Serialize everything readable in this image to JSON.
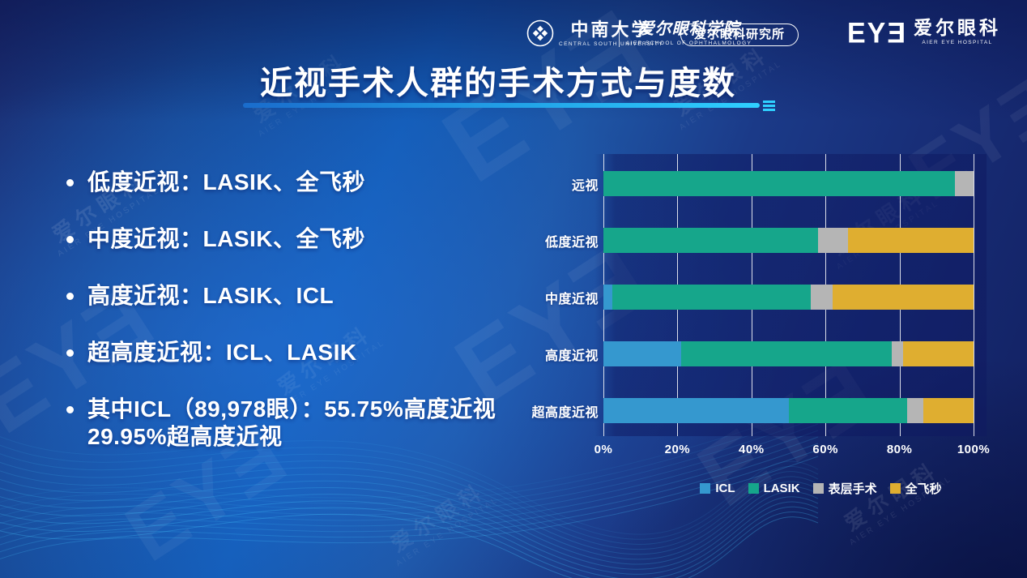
{
  "header": {
    "title": "近视手术人群的手术方式与度数",
    "logos": {
      "csu_name": "中南大学",
      "csu_sub": "CENTRAL SOUTH UNIVERSITY",
      "school_name": "爱尔眼科学院",
      "school_sub": "AIER SCHOOL OF OPHTHALMOLOGY",
      "institute_badge": "爱尔眼科研究所",
      "eye_mark": "EYƎ",
      "hospital_name": "爱尔眼科",
      "hospital_sub": "AIER EYE HOSPITAL"
    }
  },
  "bullets": [
    "低度近视：LASIK、全飞秒",
    "中度近视：LASIK、全飞秒",
    "高度近视：LASIK、ICL",
    "超高度近视：ICL、LASIK",
    "其中ICL（89,978眼）：55.75%高度近视 29.95%超高度近视"
  ],
  "watermark": {
    "cn": "爱尔眼科",
    "en": "AIER EYE HOSPITAL",
    "mark": "EYƎ"
  },
  "colors": {
    "accent_cyan": "#2fd0ff",
    "background_blue": "#135cb7",
    "panel_navy": "#1b2a7e"
  },
  "chart_data": {
    "type": "bar",
    "orientation": "horizontal",
    "stacked": true,
    "unit": "%",
    "categories": [
      "远视",
      "低度近视",
      "中度近视",
      "高度近视",
      "超高度近视"
    ],
    "series": [
      {
        "name": "ICL",
        "color": "#3598cf",
        "values": [
          0,
          0,
          2.5,
          21,
          50
        ]
      },
      {
        "name": "LASIK",
        "color": "#16a68b",
        "values": [
          95,
          58,
          53.5,
          57,
          32
        ]
      },
      {
        "name": "表层手术",
        "color": "#b5b5b5",
        "values": [
          5,
          8,
          6,
          3,
          4.5
        ]
      },
      {
        "name": "全飞秒",
        "color": "#dfae30",
        "values": [
          0,
          34,
          38,
          19,
          13.5
        ]
      }
    ],
    "x_ticks": [
      "0%",
      "20%",
      "40%",
      "60%",
      "80%",
      "100%"
    ],
    "xlim": [
      0,
      100
    ],
    "grid": true,
    "legend_position": "bottom"
  }
}
